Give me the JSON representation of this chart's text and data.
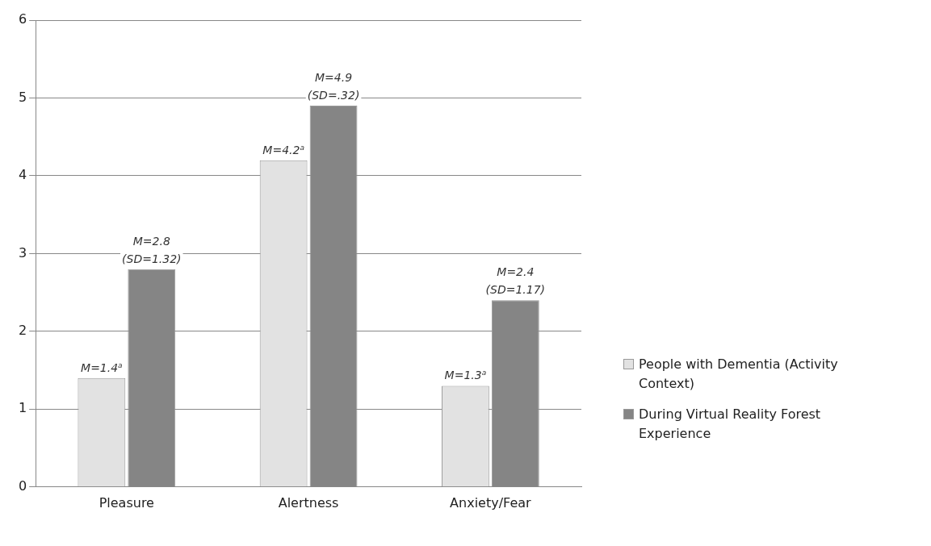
{
  "chart_data": {
    "type": "bar",
    "categories": [
      "Pleasure",
      "Alertness",
      "Anxiety/Fear"
    ],
    "series": [
      {
        "name": "People with Dementia (Activity Context)",
        "color": "#e2e2e2",
        "values": [
          1.4,
          4.2,
          1.3
        ],
        "value_labels": [
          "M=1.4$^{a}$",
          "M=4.2$^{a}$",
          "M=1.3$^{a}$"
        ]
      },
      {
        "name": "During Virtual Reality Forest Experience",
        "color": "#858585",
        "values": [
          2.8,
          4.9,
          2.4
        ],
        "value_labels": [
          "M=2.8\n(SD=1.32)",
          "M=4.9\n(SD=.32)",
          "M=2.4\n(SD=1.17)"
        ]
      }
    ],
    "ylim": [
      0,
      6
    ],
    "yticks": [
      0,
      1,
      2,
      3,
      4,
      5,
      6
    ],
    "grid": "y",
    "legend": "right"
  }
}
